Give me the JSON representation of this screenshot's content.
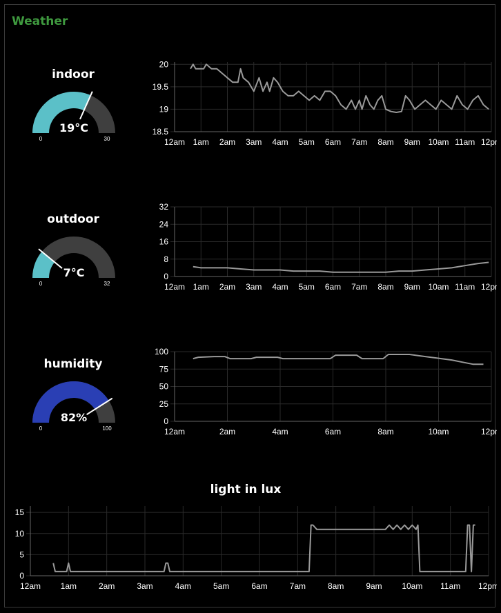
{
  "group": {
    "title": "Weather"
  },
  "gauges": [
    {
      "label": "indoor",
      "value": 19,
      "display": "19°C",
      "min": "0",
      "max": "30",
      "min_val": 0,
      "max_val": 30,
      "color": "#5bc0c8"
    },
    {
      "label": "outdoor",
      "value": 7,
      "display": "7°C",
      "min": "0",
      "max": "32",
      "min_val": 0,
      "max_val": 32,
      "color": "#5bc0c8"
    },
    {
      "label": "humidity",
      "value": 82,
      "display": "82%",
      "min": "0",
      "max": "100",
      "min_val": 0,
      "max_val": 100,
      "color": "#2a3fb4"
    }
  ],
  "light": {
    "title": "light in lux"
  },
  "colors": {
    "background": "#000000",
    "gauge_track": "#3f3f3f",
    "line": "#9a9a9a",
    "grid": "#2a2a2a",
    "title": "#3f9a3f"
  },
  "chart_data": [
    {
      "type": "line",
      "title": "",
      "xlabel": "",
      "ylabel": "",
      "x_ticks": [
        "12am",
        "1am",
        "2am",
        "3am",
        "4am",
        "5am",
        "6am",
        "7am",
        "8am",
        "9am",
        "10am",
        "11am",
        "12pm"
      ],
      "x_tick_values": [
        0,
        1,
        2,
        3,
        4,
        5,
        6,
        7,
        8,
        9,
        10,
        11,
        12
      ],
      "y_ticks": [
        "18.5",
        "19",
        "19.5",
        "20"
      ],
      "y_tick_values": [
        18.5,
        19,
        19.5,
        20
      ],
      "xlim": [
        0,
        12
      ],
      "ylim": [
        18.5,
        20.05
      ],
      "grid": true,
      "series": [
        {
          "x": [
            0.6,
            0.7,
            0.8,
            1.0,
            1.1,
            1.2,
            1.4,
            1.6,
            1.8,
            2.0,
            2.2,
            2.4,
            2.5,
            2.6,
            2.8,
            3.0,
            3.2,
            3.35,
            3.5,
            3.6,
            3.75,
            3.9,
            4.1,
            4.3,
            4.5,
            4.7,
            4.9,
            5.1,
            5.3,
            5.5,
            5.7,
            5.9,
            6.1,
            6.3,
            6.5,
            6.7,
            6.85,
            7.0,
            7.1,
            7.25,
            7.4,
            7.55,
            7.7,
            7.85,
            8.0,
            8.2,
            8.4,
            8.6,
            8.75,
            8.9,
            9.1,
            9.3,
            9.5,
            9.7,
            9.9,
            10.1,
            10.3,
            10.5,
            10.7,
            10.9,
            11.1,
            11.3,
            11.5,
            11.7,
            11.9
          ],
          "y": [
            19.9,
            20.0,
            19.9,
            19.9,
            19.9,
            20.0,
            19.9,
            19.9,
            19.8,
            19.7,
            19.6,
            19.6,
            19.9,
            19.7,
            19.6,
            19.4,
            19.7,
            19.4,
            19.6,
            19.4,
            19.7,
            19.6,
            19.4,
            19.3,
            19.3,
            19.4,
            19.3,
            19.2,
            19.3,
            19.2,
            19.4,
            19.4,
            19.3,
            19.1,
            19.0,
            19.2,
            19.0,
            19.2,
            19.0,
            19.3,
            19.1,
            19.0,
            19.2,
            19.3,
            19.0,
            18.95,
            18.93,
            18.95,
            19.3,
            19.2,
            19.0,
            19.1,
            19.2,
            19.1,
            19.0,
            19.2,
            19.1,
            19.0,
            19.3,
            19.1,
            19.0,
            19.2,
            19.3,
            19.1,
            19.0
          ]
        }
      ]
    },
    {
      "type": "line",
      "title": "",
      "xlabel": "",
      "ylabel": "",
      "x_ticks": [
        "12am",
        "1am",
        "2am",
        "3am",
        "4am",
        "5am",
        "6am",
        "7am",
        "8am",
        "9am",
        "10am",
        "11am",
        "12pm"
      ],
      "x_tick_values": [
        0,
        1,
        2,
        3,
        4,
        5,
        6,
        7,
        8,
        9,
        10,
        11,
        12
      ],
      "y_ticks": [
        "0",
        "8",
        "16",
        "24",
        "32"
      ],
      "y_tick_values": [
        0,
        8,
        16,
        24,
        32
      ],
      "xlim": [
        0,
        12
      ],
      "ylim": [
        0,
        32
      ],
      "grid": true,
      "series": [
        {
          "x": [
            0.7,
            1.0,
            1.5,
            2.0,
            2.5,
            3.0,
            3.5,
            4.0,
            4.5,
            5.0,
            5.5,
            6.0,
            6.5,
            7.0,
            7.5,
            8.0,
            8.5,
            9.0,
            9.5,
            10.0,
            10.5,
            11.0,
            11.5,
            11.9
          ],
          "y": [
            4.5,
            4.0,
            4.0,
            4.0,
            3.5,
            3.0,
            3.0,
            3.0,
            2.5,
            2.5,
            2.5,
            2.0,
            2.0,
            2.0,
            2.0,
            2.0,
            2.5,
            2.5,
            3.0,
            3.5,
            4.0,
            5.0,
            6.0,
            6.5
          ]
        }
      ]
    },
    {
      "type": "line",
      "title": "",
      "xlabel": "",
      "ylabel": "",
      "x_ticks": [
        "12am",
        "2am",
        "4am",
        "6am",
        "8am",
        "10am",
        "12pm"
      ],
      "x_tick_values": [
        0,
        2,
        4,
        6,
        8,
        10,
        12
      ],
      "y_ticks": [
        "0",
        "25",
        "50",
        "75",
        "100"
      ],
      "y_tick_values": [
        0,
        25,
        50,
        75,
        100
      ],
      "xlim": [
        0,
        12
      ],
      "ylim": [
        0,
        100
      ],
      "grid": true,
      "series": [
        {
          "x": [
            0.7,
            0.9,
            1.5,
            1.9,
            2.1,
            2.9,
            3.1,
            3.9,
            4.1,
            4.9,
            5.1,
            5.9,
            6.1,
            6.9,
            7.1,
            7.7,
            7.9,
            8.1,
            8.5,
            8.9,
            9.3,
            9.7,
            10.1,
            10.5,
            10.9,
            11.3,
            11.7
          ],
          "y": [
            90,
            92,
            93,
            93,
            90,
            90,
            92,
            92,
            90,
            90,
            90,
            90,
            95,
            95,
            90,
            90,
            90,
            96,
            96,
            96,
            94,
            92,
            90,
            88,
            85,
            82,
            82
          ]
        }
      ]
    },
    {
      "type": "line",
      "title": "light in lux",
      "xlabel": "",
      "ylabel": "",
      "x_ticks": [
        "12am",
        "1am",
        "2am",
        "3am",
        "4am",
        "5am",
        "6am",
        "7am",
        "8am",
        "9am",
        "10am",
        "11am",
        "12pm"
      ],
      "x_tick_values": [
        0,
        1,
        2,
        3,
        4,
        5,
        6,
        7,
        8,
        9,
        10,
        11,
        12
      ],
      "y_ticks": [
        "0",
        "5",
        "10",
        "15"
      ],
      "y_tick_values": [
        0,
        5,
        10,
        15
      ],
      "xlim": [
        0,
        12
      ],
      "ylim": [
        0,
        16.5
      ],
      "grid": true,
      "series": [
        {
          "x": [
            0.6,
            0.65,
            0.7,
            0.95,
            1.0,
            1.05,
            3.5,
            3.55,
            3.6,
            3.65,
            7.3,
            7.35,
            7.4,
            7.5,
            7.6,
            9.3,
            9.4,
            9.5,
            9.6,
            9.7,
            9.8,
            9.9,
            10.0,
            10.1,
            10.15,
            10.2,
            11.4,
            11.45,
            11.5,
            11.55,
            11.6,
            11.65
          ],
          "y": [
            3,
            1,
            1,
            1,
            3,
            1,
            1,
            3,
            3,
            1,
            1,
            12,
            12,
            11,
            11,
            11,
            12,
            11,
            12,
            11,
            12,
            11,
            12,
            11,
            12,
            1,
            1,
            12,
            12,
            1,
            12,
            12
          ]
        }
      ]
    }
  ]
}
